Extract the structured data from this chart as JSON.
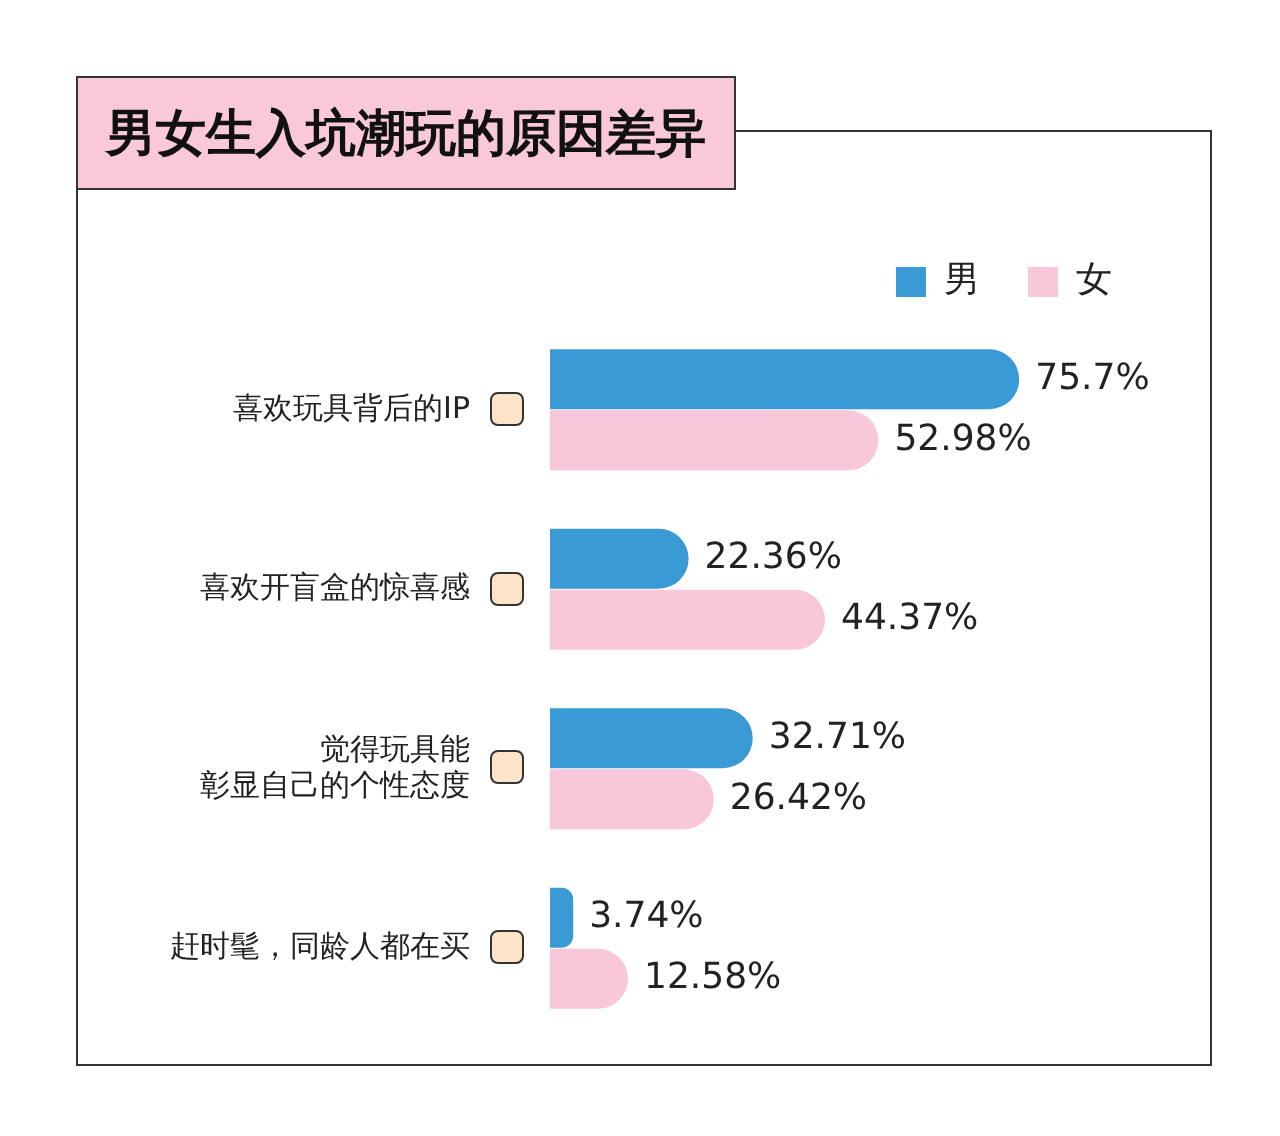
{
  "chart_data": {
    "type": "bar",
    "orientation": "horizontal",
    "title": "男女生入坑潮玩的原因差异",
    "categories": [
      "喜欢玩具背后的IP",
      "喜欢开盲盒的惊喜感",
      "觉得玩具能彰显自己的个性态度",
      "赶时髦，同龄人都在买"
    ],
    "series": [
      {
        "name": "男",
        "color": "#3a9ad6",
        "values": [
          75.7,
          22.36,
          32.71,
          3.74
        ],
        "value_labels": [
          "75.7%",
          "22.36%",
          "32.71%",
          "3.74%"
        ]
      },
      {
        "name": "女",
        "color": "#f8c8da",
        "values": [
          52.98,
          44.37,
          26.42,
          12.58
        ],
        "value_labels": [
          "52.98%",
          "44.37%",
          "26.42%",
          "12.58%"
        ]
      }
    ],
    "legend": "top right",
    "grid": false
  }
}
